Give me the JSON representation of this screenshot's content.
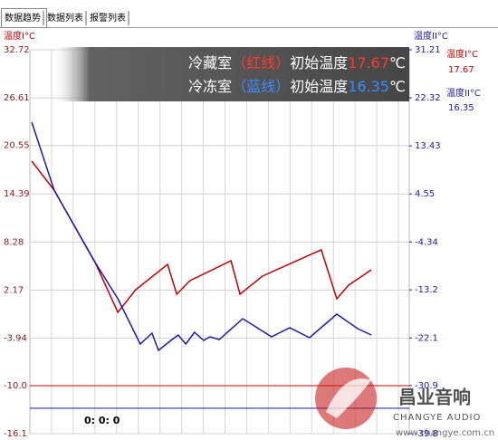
{
  "chart_data": {
    "type": "line",
    "tabs": [
      "数据趋势",
      "数据列表",
      "报警列表"
    ],
    "ylabel": "温度I°C",
    "y2label": "温度II°C",
    "ylim": [
      -16.1,
      32.72
    ],
    "yticks": [
      -16.1,
      {
        "value": -10,
        "label": "-10.0"
      },
      -3.94,
      2.17,
      8.28,
      14.39,
      20.55,
      26.61,
      32.72
    ],
    "y2lim": [
      -39.8,
      31.21
    ],
    "y2ticks": [
      -39.8,
      -30.9,
      -22.1,
      -13.2,
      -4.34,
      4.55,
      13.43,
      22.32,
      31.21
    ],
    "xlim": [
      0,
      100
    ],
    "grid": true,
    "legend_text": "初始温度",
    "unit": "℃",
    "series": [
      {
        "name": "冷藏室",
        "tag": "（红线）",
        "readout_label": "温度I°C",
        "initial": 17.67,
        "color": "#c00000",
        "legend_color": "#ff3a2a",
        "axis": "y",
        "x": [
          0.5,
          6.4,
          17.2,
          23.2,
          27.9,
          36.3,
          38.7,
          42.2,
          53.0,
          55.4,
          61.3,
          76.8,
          80.9,
          84.0,
          90.0
        ],
        "values": [
          18.56,
          14.87,
          5.66,
          -0.67,
          2.21,
          5.43,
          1.63,
          3.36,
          5.89,
          1.63,
          3.94,
          7.28,
          1.06,
          2.78,
          4.74
        ]
      },
      {
        "name": "冷冻室",
        "tag": "（蓝线）",
        "readout_label": "温度II°C",
        "initial": 16.35,
        "color": "#1a1aa8",
        "legend_color": "#3a8cff",
        "axis": "y2",
        "x": [
          0.5,
          6.4,
          17.2,
          23.2,
          29.1,
          32.2,
          33.9,
          37.5,
          39.1,
          41.1,
          43.4,
          45.8,
          47.5,
          49.9,
          56.1,
          63.7,
          68.5,
          73.7,
          80.9,
          86.4,
          90.0
        ],
        "values": [
          17.81,
          5.25,
          -8.15,
          -14.85,
          -23.22,
          -21.21,
          -24.39,
          -22.38,
          -21.55,
          -23.22,
          -21.04,
          -22.55,
          -21.88,
          -22.38,
          -18.53,
          -21.88,
          -20.21,
          -22.05,
          -17.69,
          -20.37,
          -21.55
        ]
      }
    ],
    "thresholds": [
      {
        "value": -10,
        "axis": "y",
        "color": "#e03030"
      },
      {
        "value": -35.1,
        "axis": "y2",
        "color": "#3030a0"
      }
    ],
    "time_label": "0: 0: 0",
    "watermark": {
      "name": "昌业音响",
      "english": "CHANGYE AUDIO",
      "url": "www.changye.com.cn"
    }
  }
}
